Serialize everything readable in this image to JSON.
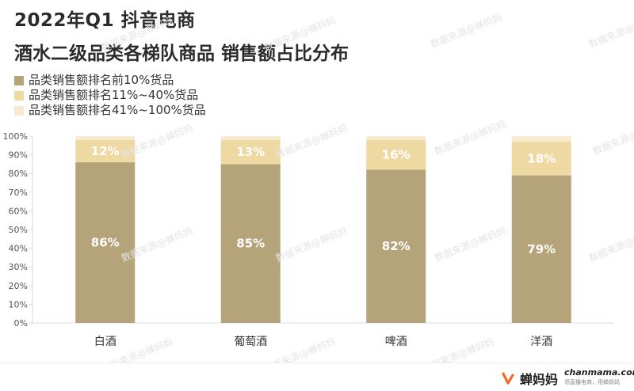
{
  "header": {
    "title_line1": "2022年Q1 抖音电商",
    "title_line2": "酒水二级品类各梯队商品 销售额占比分布"
  },
  "legend": [
    {
      "label": "品类销售额排名前10%货品",
      "color": "#b5a37a"
    },
    {
      "label": "品类销售额排名11%~40%货品",
      "color": "#efd9a3"
    },
    {
      "label": "品类销售额排名41%~100%货品",
      "color": "#f7ead0"
    }
  ],
  "watermark": "数据来源@蝉妈妈",
  "brand": {
    "name": "蝉妈妈",
    "url": "chanmama.com",
    "slogan": "领直播电商，用蝉妈妈"
  },
  "chart_data": {
    "type": "bar",
    "stacked": true,
    "categories": [
      "白酒",
      "葡萄酒",
      "啤酒",
      "洋酒"
    ],
    "series": [
      {
        "name": "品类销售额排名前10%货品",
        "values": [
          86,
          85,
          82,
          79
        ],
        "labels": [
          "86%",
          "85%",
          "82%",
          "79%"
        ],
        "color": "#b5a37a",
        "label_color": "#ffffff"
      },
      {
        "name": "品类销售额排名11%~40%货品",
        "values": [
          12,
          13,
          16,
          18
        ],
        "labels": [
          "12%",
          "13%",
          "16%",
          "18%"
        ],
        "color": "#efd9a3",
        "label_color": "#ffffff"
      },
      {
        "name": "品类销售额排名41%~100%货品",
        "values": [
          2,
          2,
          2,
          3
        ],
        "labels": [
          "",
          "",
          "",
          ""
        ],
        "color": "#f7ead0",
        "label_color": "#ffffff"
      }
    ],
    "ylim": [
      0,
      100
    ],
    "yticks": [
      "0%",
      "10%",
      "20%",
      "30%",
      "40%",
      "50%",
      "60%",
      "70%",
      "80%",
      "90%",
      "100%"
    ],
    "grid": false,
    "legend_position": "top-left"
  }
}
